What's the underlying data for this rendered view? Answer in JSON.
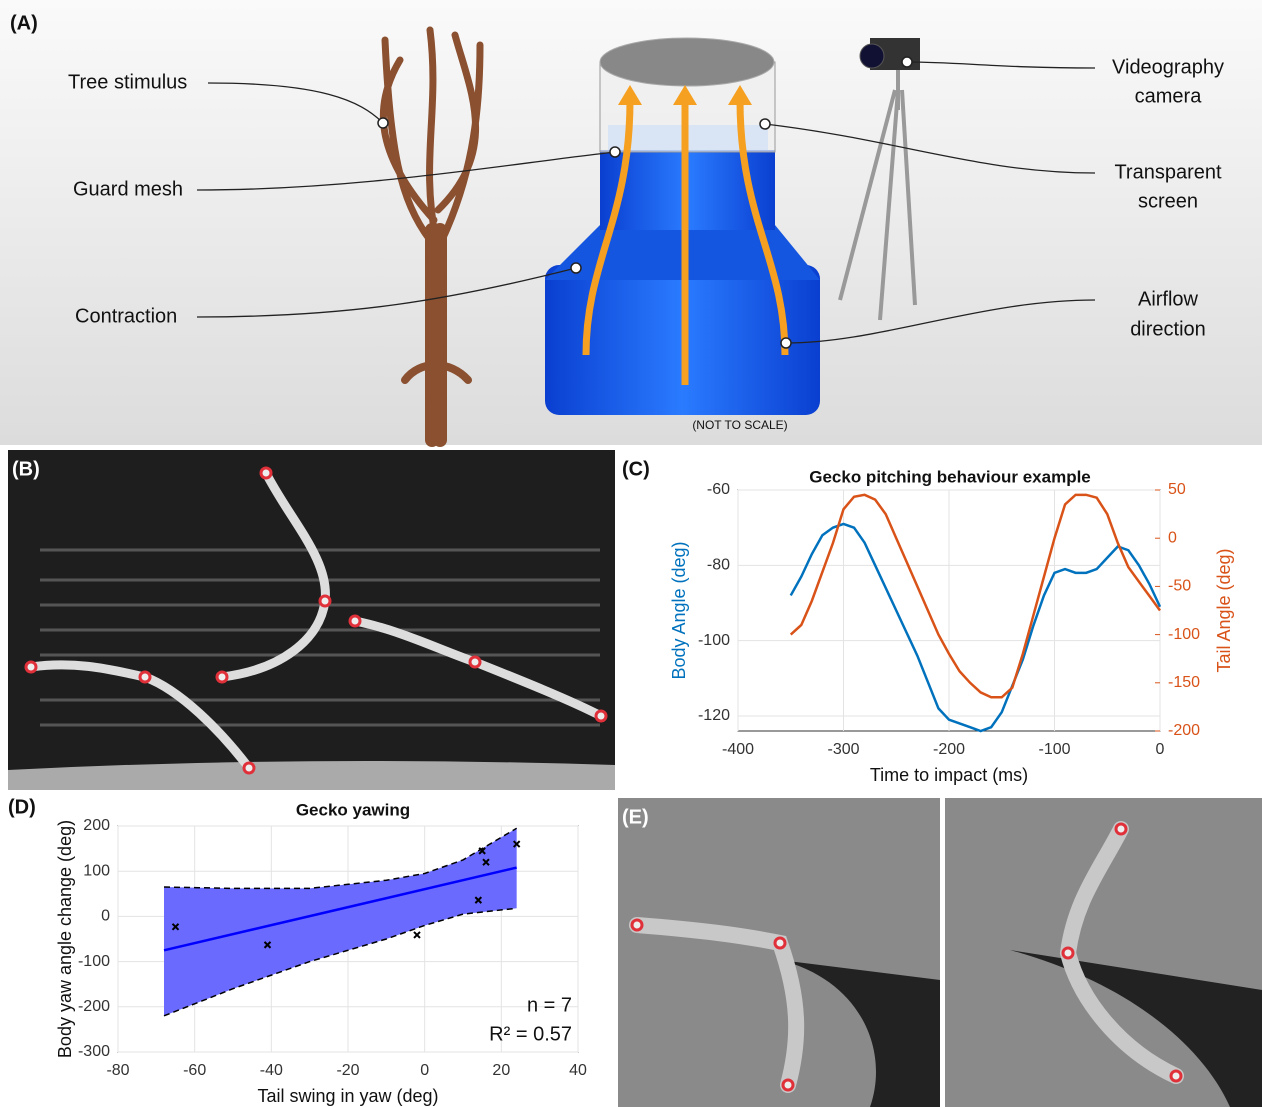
{
  "panel_labels": [
    "(A)",
    "(B)",
    "(C)",
    "(D)",
    "(E)"
  ],
  "panel_a": {
    "labels": [
      [
        "Tree stimulus"
      ],
      [
        "Guard mesh"
      ],
      [
        "Contraction"
      ],
      [
        "Videography",
        "camera"
      ],
      [
        "Transparent",
        "screen"
      ],
      [
        "Airflow",
        "direction"
      ]
    ],
    "note": "(NOT TO SCALE)"
  },
  "chart_data": [
    {
      "type": "line",
      "title": "Gecko pitching behaviour example",
      "x_label": "Time to impact (ms)",
      "y_label": "Body Angle (deg)",
      "y2_label": "Tail Angle (deg)",
      "xlim": [
        -400,
        0
      ],
      "xticks": [
        -400,
        -300,
        -200,
        -100,
        0
      ],
      "ylim": [
        -124,
        -60
      ],
      "yticks": [
        -120,
        -100,
        -80,
        -60
      ],
      "y2lim": [
        -200,
        50
      ],
      "y2ticks": [
        -200,
        -150,
        -100,
        -50,
        0,
        50
      ],
      "grid": true,
      "series": [
        {
          "color": "#0072bd",
          "x": [
            -350,
            -340,
            -330,
            -320,
            -310,
            -300,
            -290,
            -280,
            -270,
            -260,
            -250,
            -240,
            -230,
            -220,
            -210,
            -200,
            -190,
            -180,
            -170,
            -160,
            -150,
            -140,
            -130,
            -120,
            -110,
            -100,
            -90,
            -80,
            -70,
            -60,
            -50,
            -40,
            -30,
            -20,
            -10,
            0
          ],
          "values": [
            -88,
            -83,
            -77,
            -72,
            -70,
            -69,
            -70,
            -74,
            -80,
            -86,
            -92,
            -98,
            -104,
            -111,
            -118,
            -121,
            -122,
            -123,
            -124,
            -123,
            -119,
            -112,
            -105,
            -96,
            -88,
            -82,
            -81,
            -82,
            -82,
            -81,
            -78,
            -75,
            -76,
            -80,
            -85,
            -91
          ]
        },
        {
          "color": "#d95319",
          "axis": "y2",
          "x": [
            -350,
            -340,
            -330,
            -320,
            -310,
            -300,
            -290,
            -280,
            -270,
            -260,
            -250,
            -240,
            -230,
            -220,
            -210,
            -200,
            -190,
            -180,
            -170,
            -160,
            -150,
            -140,
            -130,
            -120,
            -110,
            -100,
            -90,
            -80,
            -70,
            -60,
            -50,
            -40,
            -30,
            -20,
            -10,
            0
          ],
          "values": [
            -100,
            -90,
            -65,
            -35,
            -5,
            30,
            43,
            45,
            40,
            25,
            0,
            -25,
            -50,
            -75,
            -100,
            -120,
            -138,
            -150,
            -160,
            -165,
            -165,
            -155,
            -120,
            -80,
            -40,
            0,
            35,
            45,
            45,
            42,
            25,
            -5,
            -30,
            -45,
            -60,
            -75
          ]
        }
      ]
    },
    {
      "type": "scatter",
      "title": "Gecko yawing",
      "x_label": "Tail swing in yaw (deg)",
      "y_label": "Body yaw angle change (deg)",
      "xlim": [
        -80,
        40
      ],
      "xticks": [
        -80,
        -60,
        -40,
        -20,
        0,
        20,
        40
      ],
      "ylim": [
        -300,
        200
      ],
      "yticks": [
        -300,
        -200,
        -100,
        0,
        100,
        200
      ],
      "grid": true,
      "annotations": [
        "n = 7",
        "R² = 0.57"
      ],
      "series": [
        {
          "type": "band",
          "color": "#6a6aff",
          "x": [
            -68,
            -50,
            -30,
            -10,
            0,
            10,
            24
          ],
          "upper": [
            65,
            62,
            62,
            80,
            95,
            125,
            195
          ],
          "lower": [
            -220,
            -160,
            -100,
            -50,
            -20,
            5,
            18
          ]
        },
        {
          "type": "line",
          "color": "#0000ff",
          "x": [
            -68,
            24
          ],
          "values": [
            -75,
            108
          ]
        },
        {
          "type": "scatter",
          "color": "#000000",
          "x": [
            -65,
            -41,
            -2,
            14,
            15,
            16,
            24
          ],
          "values": [
            -23,
            -63,
            -41,
            36,
            145,
            120,
            160
          ]
        }
      ]
    }
  ]
}
